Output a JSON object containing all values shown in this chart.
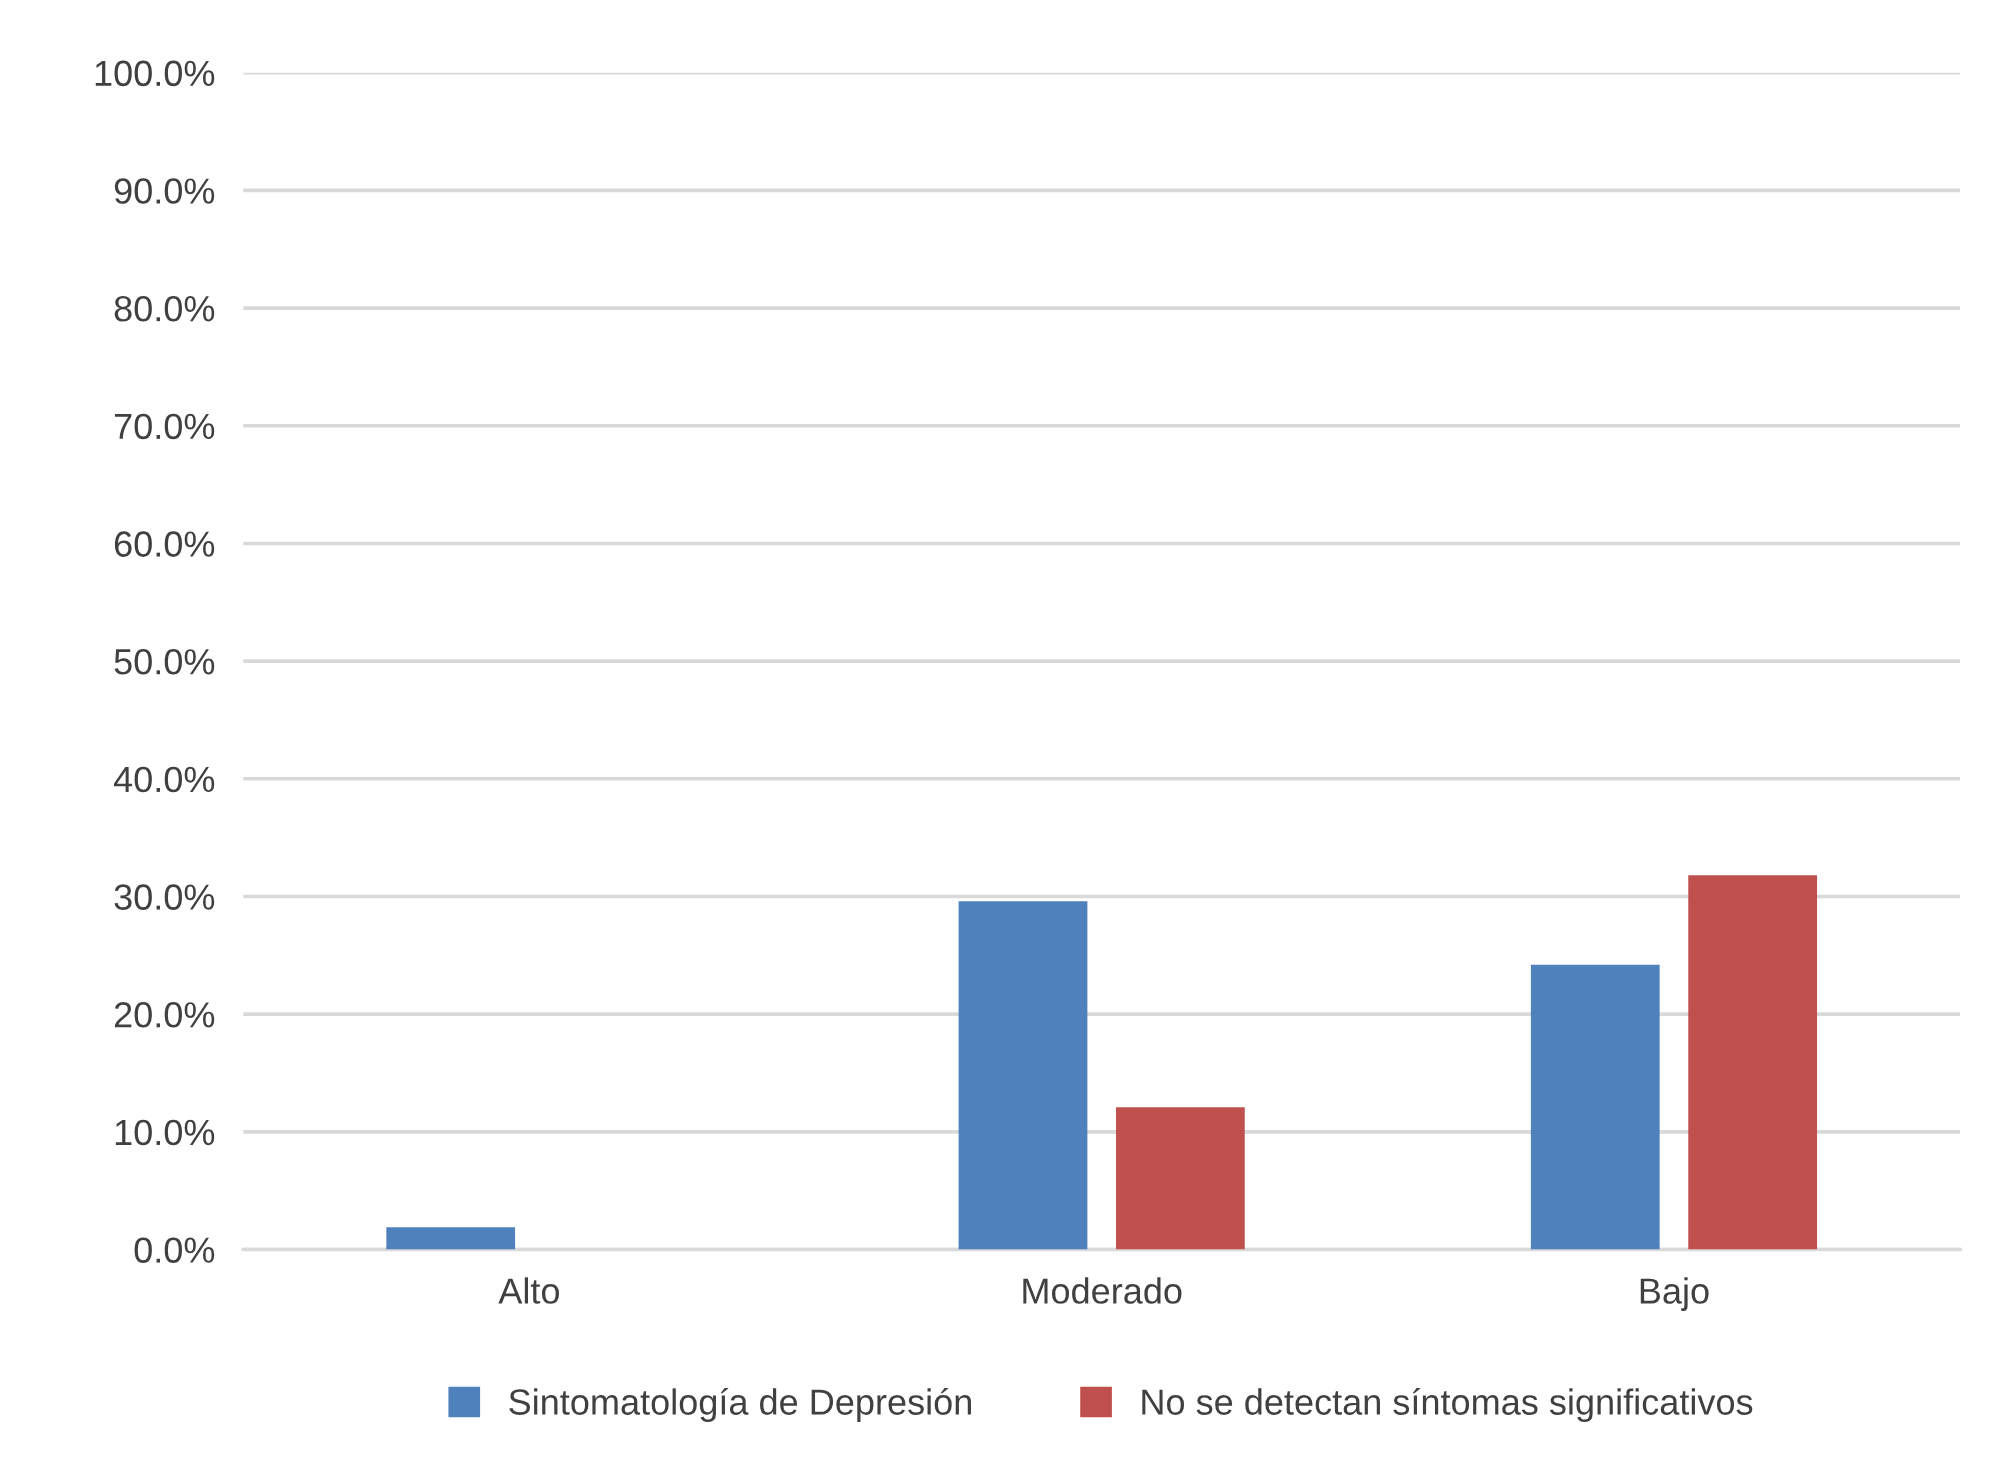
{
  "chart_data": {
    "type": "bar",
    "categories": [
      "Alto",
      "Moderado",
      "Bajo"
    ],
    "series": [
      {
        "name": "Sintomatología de Depresión",
        "color": "#4f81bd",
        "values": [
          1.9,
          29.6,
          24.2
        ]
      },
      {
        "name": "No se detectan síntomas significativos",
        "color": "#c0504d",
        "values": [
          0,
          12.1,
          31.8
        ]
      }
    ],
    "ylim": [
      0,
      100
    ],
    "yticks": [
      {
        "value": 0,
        "label": "0.0%"
      },
      {
        "value": 10,
        "label": "10.0%"
      },
      {
        "value": 20,
        "label": "20.0%"
      },
      {
        "value": 30,
        "label": "30.0%"
      },
      {
        "value": 40,
        "label": "40.0%"
      },
      {
        "value": 50,
        "label": "50.0%"
      },
      {
        "value": 60,
        "label": "60.0%"
      },
      {
        "value": 70,
        "label": "70.0%"
      },
      {
        "value": 80,
        "label": "80.0%"
      },
      {
        "value": 90,
        "label": "90.0%"
      },
      {
        "value": 100,
        "label": "100.0%"
      }
    ],
    "grid": "y",
    "legend": "bottom"
  }
}
